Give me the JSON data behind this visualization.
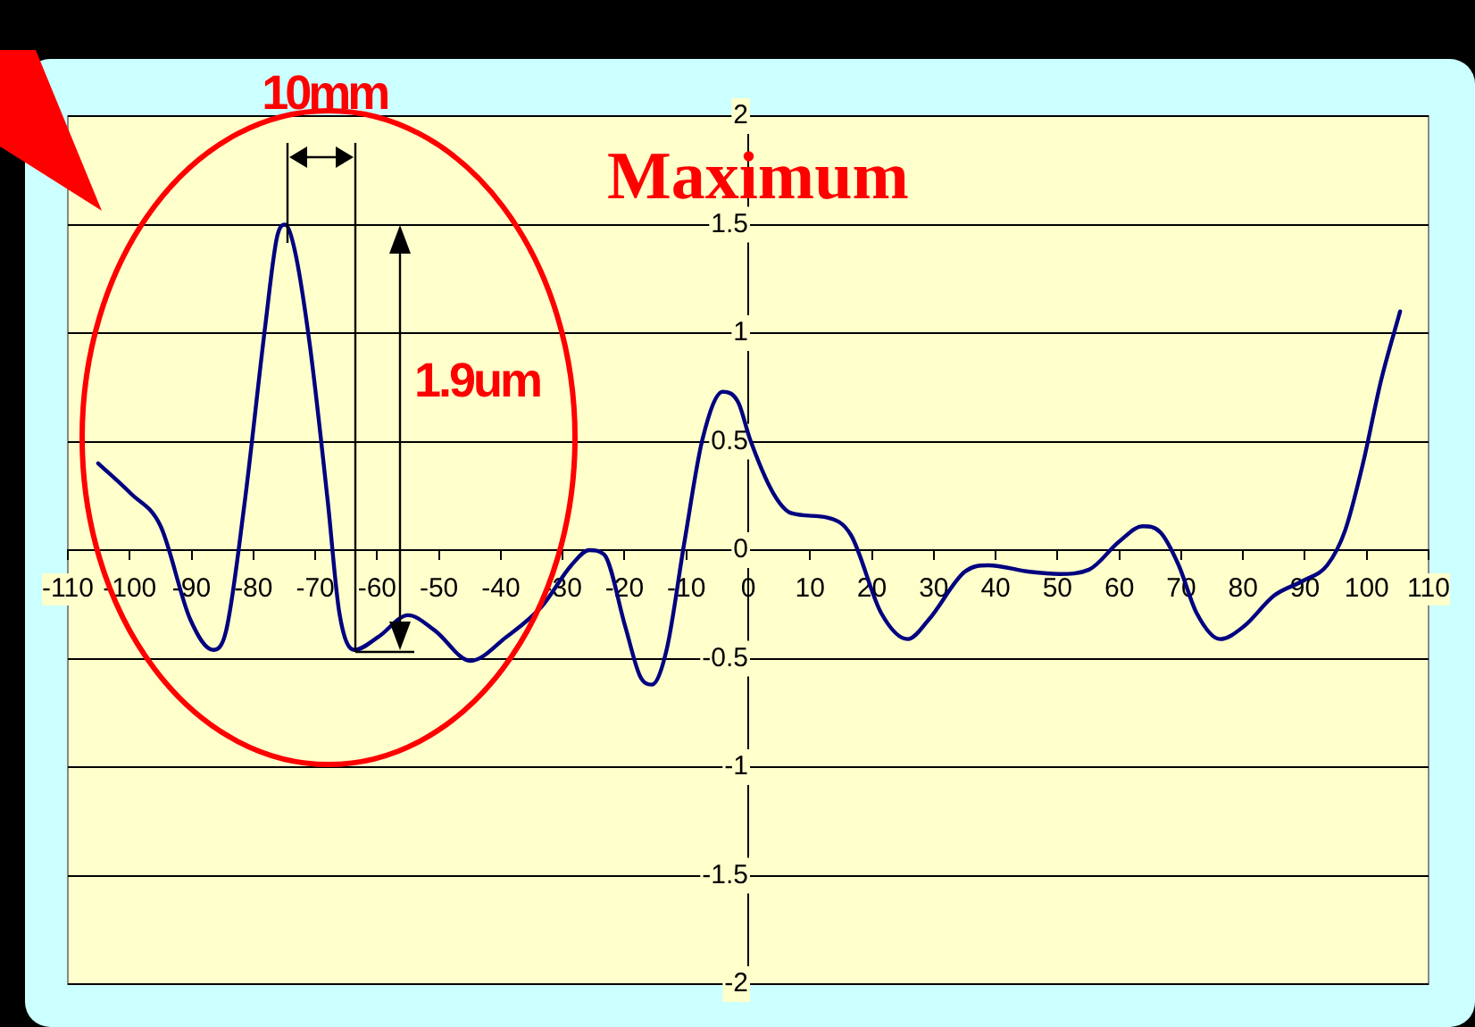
{
  "chart_data": {
    "type": "line",
    "x": [
      -105.1,
      -99.8,
      -95,
      -90.2,
      -86.5,
      -84.4,
      -81.5,
      -78.1,
      -76.2,
      -74.9,
      -73.3,
      -70.9,
      -68,
      -66.1,
      -63.7,
      -59.8,
      -55,
      -50.7,
      -44.9,
      -39.1,
      -33.4,
      -28.6,
      -25.7,
      -23.3,
      -19.9,
      -17.5,
      -15.6,
      -13.2,
      -10.3,
      -7.4,
      -4.1,
      -1.6,
      0.3,
      4.1,
      7,
      12.8,
      16.6,
      21.5,
      25.8,
      29.2,
      35,
      38.8,
      45.5,
      50.3,
      55.1,
      60,
      63.8,
      66.7,
      69.6,
      72.5,
      76.3,
      80.2,
      85,
      89.8,
      93.6,
      96.5,
      99.4,
      102.3,
      105.4
    ],
    "series": [
      {
        "color": "#000080",
        "values": [
          0.4,
          0.26,
          0.11,
          -0.32,
          -0.46,
          -0.37,
          0.2,
          1.03,
          1.44,
          1.5,
          1.38,
          0.95,
          0.23,
          -0.29,
          -0.46,
          -0.4,
          -0.3,
          -0.37,
          -0.51,
          -0.4,
          -0.26,
          -0.07,
          0.0,
          -0.02,
          -0.35,
          -0.58,
          -0.62,
          -0.46,
          0.04,
          0.51,
          0.73,
          0.68,
          0.51,
          0.26,
          0.17,
          0.15,
          0.07,
          -0.29,
          -0.41,
          -0.32,
          -0.1,
          -0.07,
          -0.1,
          -0.11,
          -0.09,
          0.04,
          0.11,
          0.08,
          -0.07,
          -0.29,
          -0.41,
          -0.35,
          -0.21,
          -0.14,
          -0.07,
          0.09,
          0.4,
          0.78,
          1.1
        ]
      }
    ],
    "xlim": [
      -110,
      110
    ],
    "xticks": [
      -110,
      -100,
      -90,
      -80,
      -70,
      -60,
      -50,
      -40,
      -30,
      -20,
      -10,
      0,
      10,
      20,
      30,
      40,
      50,
      60,
      70,
      80,
      90,
      100,
      110
    ],
    "ylim": [
      -2,
      2
    ],
    "yticks": [
      -2,
      -1.5,
      -1,
      -0.5,
      0,
      0.5,
      1,
      1.5,
      2
    ],
    "grid": "y",
    "marker": "none",
    "line_style": "solid",
    "annotations": [
      "Maximum",
      {
        "text": "10mm",
        "x": -74.9,
        "y": 1.5
      },
      "1.9um"
    ]
  }
}
